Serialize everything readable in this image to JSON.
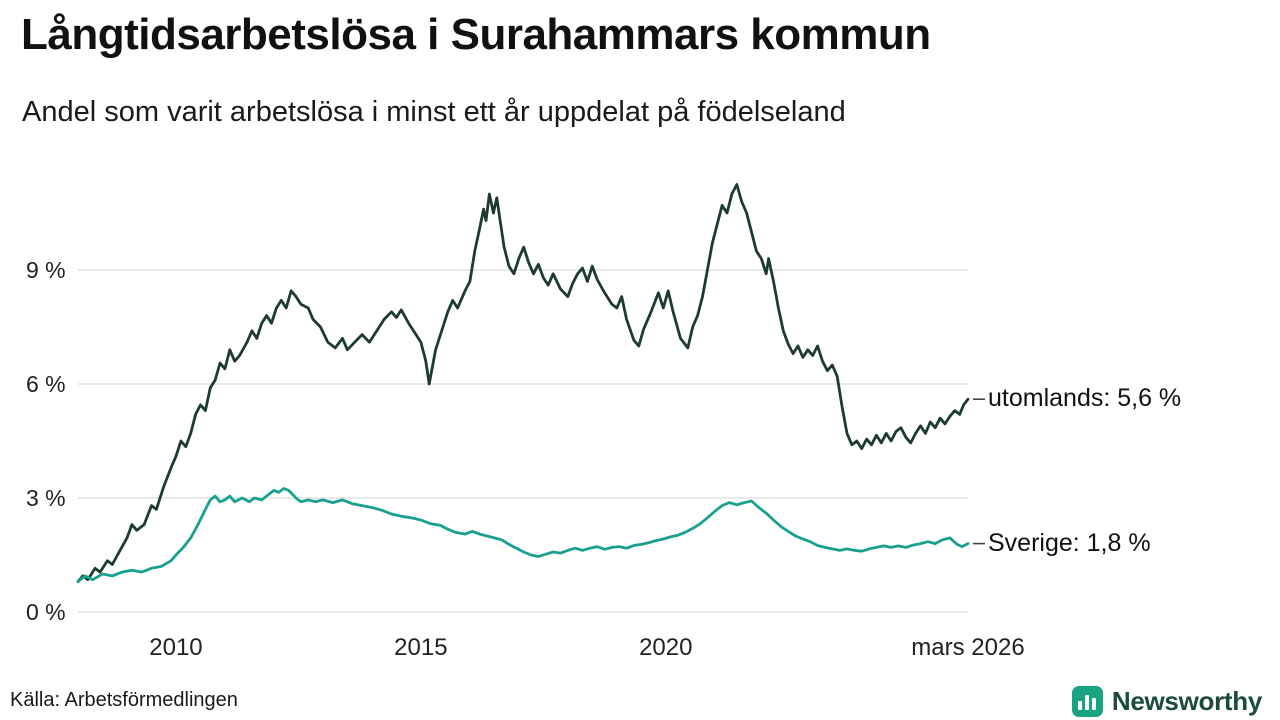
{
  "header": {
    "title": "Långtidsarbetslösa i Surahammars kommun",
    "subtitle": "Andel som varit arbetslösa i minst ett år uppdelat på födelseland"
  },
  "footer": {
    "source": "Källa: Arbetsförmedlingen"
  },
  "branding": {
    "name": "Newsworthy",
    "logo_icon": "bar-chart-icon",
    "accent_color": "#18a383",
    "text_color": "#1b4a3e"
  },
  "chart_data": {
    "type": "line",
    "title": "Långtidsarbetslösa i Surahammars kommun",
    "subtitle": "Andel som varit arbetslösa i minst ett år uppdelat på födelseland",
    "unit": "%",
    "grid": "horizontal",
    "legend_position": "right-end-labels",
    "x_axis": {
      "range": [
        2008.0,
        2026.17
      ],
      "ticks": [
        {
          "value": 2010,
          "label": "2010"
        },
        {
          "value": 2015,
          "label": "2015"
        },
        {
          "value": 2020,
          "label": "2020"
        },
        {
          "value": 2026.17,
          "label": "mars 2026"
        }
      ]
    },
    "y_axis": {
      "range": [
        0,
        11.6
      ],
      "ticks": [
        {
          "value": 0,
          "label": "0 %"
        },
        {
          "value": 3,
          "label": "3 %"
        },
        {
          "value": 6,
          "label": "6 %"
        },
        {
          "value": 9,
          "label": "9 %"
        }
      ]
    },
    "series": [
      {
        "name": "utomlands",
        "color": "#1e3b31",
        "end_value": 5.6,
        "end_label": "utomlands: 5,6 %",
        "points": [
          [
            2008.0,
            0.8
          ],
          [
            2008.1,
            0.95
          ],
          [
            2008.2,
            0.85
          ],
          [
            2008.35,
            1.15
          ],
          [
            2008.45,
            1.05
          ],
          [
            2008.6,
            1.35
          ],
          [
            2008.7,
            1.25
          ],
          [
            2008.85,
            1.6
          ],
          [
            2009.0,
            1.95
          ],
          [
            2009.1,
            2.3
          ],
          [
            2009.2,
            2.15
          ],
          [
            2009.35,
            2.3
          ],
          [
            2009.5,
            2.8
          ],
          [
            2009.6,
            2.7
          ],
          [
            2009.75,
            3.3
          ],
          [
            2009.9,
            3.8
          ],
          [
            2010.0,
            4.1
          ],
          [
            2010.1,
            4.5
          ],
          [
            2010.2,
            4.35
          ],
          [
            2010.3,
            4.7
          ],
          [
            2010.4,
            5.2
          ],
          [
            2010.5,
            5.45
          ],
          [
            2010.6,
            5.3
          ],
          [
            2010.7,
            5.9
          ],
          [
            2010.8,
            6.1
          ],
          [
            2010.9,
            6.55
          ],
          [
            2011.0,
            6.4
          ],
          [
            2011.1,
            6.9
          ],
          [
            2011.2,
            6.6
          ],
          [
            2011.3,
            6.75
          ],
          [
            2011.45,
            7.1
          ],
          [
            2011.55,
            7.4
          ],
          [
            2011.65,
            7.2
          ],
          [
            2011.75,
            7.6
          ],
          [
            2011.85,
            7.8
          ],
          [
            2011.95,
            7.6
          ],
          [
            2012.05,
            8.0
          ],
          [
            2012.15,
            8.2
          ],
          [
            2012.25,
            8.0
          ],
          [
            2012.35,
            8.45
          ],
          [
            2012.45,
            8.3
          ],
          [
            2012.55,
            8.1
          ],
          [
            2012.7,
            8.0
          ],
          [
            2012.8,
            7.7
          ],
          [
            2012.95,
            7.5
          ],
          [
            2013.1,
            7.1
          ],
          [
            2013.25,
            6.95
          ],
          [
            2013.4,
            7.2
          ],
          [
            2013.5,
            6.9
          ],
          [
            2013.65,
            7.1
          ],
          [
            2013.8,
            7.3
          ],
          [
            2013.95,
            7.1
          ],
          [
            2014.1,
            7.4
          ],
          [
            2014.25,
            7.7
          ],
          [
            2014.4,
            7.9
          ],
          [
            2014.5,
            7.75
          ],
          [
            2014.6,
            7.95
          ],
          [
            2014.75,
            7.6
          ],
          [
            2014.9,
            7.3
          ],
          [
            2015.0,
            7.1
          ],
          [
            2015.1,
            6.6
          ],
          [
            2015.17,
            6.0
          ],
          [
            2015.3,
            6.9
          ],
          [
            2015.45,
            7.5
          ],
          [
            2015.55,
            7.9
          ],
          [
            2015.65,
            8.2
          ],
          [
            2015.75,
            8.0
          ],
          [
            2015.9,
            8.45
          ],
          [
            2016.0,
            8.7
          ],
          [
            2016.1,
            9.5
          ],
          [
            2016.2,
            10.1
          ],
          [
            2016.28,
            10.6
          ],
          [
            2016.33,
            10.3
          ],
          [
            2016.4,
            11.0
          ],
          [
            2016.48,
            10.5
          ],
          [
            2016.55,
            10.9
          ],
          [
            2016.63,
            10.2
          ],
          [
            2016.7,
            9.6
          ],
          [
            2016.8,
            9.1
          ],
          [
            2016.9,
            8.9
          ],
          [
            2017.0,
            9.3
          ],
          [
            2017.1,
            9.6
          ],
          [
            2017.2,
            9.2
          ],
          [
            2017.3,
            8.9
          ],
          [
            2017.4,
            9.15
          ],
          [
            2017.5,
            8.8
          ],
          [
            2017.6,
            8.6
          ],
          [
            2017.7,
            8.9
          ],
          [
            2017.85,
            8.5
          ],
          [
            2018.0,
            8.3
          ],
          [
            2018.1,
            8.65
          ],
          [
            2018.2,
            8.9
          ],
          [
            2018.3,
            9.05
          ],
          [
            2018.4,
            8.7
          ],
          [
            2018.5,
            9.1
          ],
          [
            2018.6,
            8.75
          ],
          [
            2018.75,
            8.4
          ],
          [
            2018.9,
            8.1
          ],
          [
            2019.0,
            8.0
          ],
          [
            2019.1,
            8.3
          ],
          [
            2019.2,
            7.7
          ],
          [
            2019.35,
            7.15
          ],
          [
            2019.45,
            7.0
          ],
          [
            2019.55,
            7.45
          ],
          [
            2019.7,
            7.9
          ],
          [
            2019.85,
            8.4
          ],
          [
            2019.95,
            8.0
          ],
          [
            2020.05,
            8.45
          ],
          [
            2020.15,
            7.9
          ],
          [
            2020.3,
            7.2
          ],
          [
            2020.45,
            6.95
          ],
          [
            2020.55,
            7.5
          ],
          [
            2020.65,
            7.8
          ],
          [
            2020.75,
            8.3
          ],
          [
            2020.85,
            9.0
          ],
          [
            2020.95,
            9.7
          ],
          [
            2021.05,
            10.2
          ],
          [
            2021.15,
            10.7
          ],
          [
            2021.25,
            10.5
          ],
          [
            2021.35,
            11.0
          ],
          [
            2021.45,
            11.25
          ],
          [
            2021.55,
            10.8
          ],
          [
            2021.65,
            10.5
          ],
          [
            2021.75,
            10.0
          ],
          [
            2021.85,
            9.5
          ],
          [
            2021.95,
            9.3
          ],
          [
            2022.05,
            8.9
          ],
          [
            2022.1,
            9.3
          ],
          [
            2022.2,
            8.7
          ],
          [
            2022.3,
            8.0
          ],
          [
            2022.4,
            7.4
          ],
          [
            2022.5,
            7.05
          ],
          [
            2022.6,
            6.8
          ],
          [
            2022.7,
            7.0
          ],
          [
            2022.8,
            6.7
          ],
          [
            2022.9,
            6.9
          ],
          [
            2023.0,
            6.75
          ],
          [
            2023.1,
            7.0
          ],
          [
            2023.2,
            6.6
          ],
          [
            2023.3,
            6.35
          ],
          [
            2023.4,
            6.5
          ],
          [
            2023.5,
            6.2
          ],
          [
            2023.6,
            5.4
          ],
          [
            2023.7,
            4.7
          ],
          [
            2023.8,
            4.4
          ],
          [
            2023.9,
            4.5
          ],
          [
            2024.0,
            4.3
          ],
          [
            2024.1,
            4.55
          ],
          [
            2024.2,
            4.4
          ],
          [
            2024.3,
            4.65
          ],
          [
            2024.4,
            4.45
          ],
          [
            2024.5,
            4.7
          ],
          [
            2024.6,
            4.5
          ],
          [
            2024.7,
            4.75
          ],
          [
            2024.8,
            4.85
          ],
          [
            2024.9,
            4.6
          ],
          [
            2025.0,
            4.45
          ],
          [
            2025.1,
            4.7
          ],
          [
            2025.2,
            4.9
          ],
          [
            2025.3,
            4.7
          ],
          [
            2025.4,
            5.0
          ],
          [
            2025.5,
            4.85
          ],
          [
            2025.6,
            5.1
          ],
          [
            2025.7,
            4.95
          ],
          [
            2025.8,
            5.15
          ],
          [
            2025.9,
            5.3
          ],
          [
            2026.0,
            5.2
          ],
          [
            2026.08,
            5.45
          ],
          [
            2026.17,
            5.6
          ]
        ]
      },
      {
        "name": "Sverige",
        "color": "#19a08e",
        "end_value": 1.8,
        "end_label": "Sverige: 1,8 %",
        "points": [
          [
            2008.0,
            0.8
          ],
          [
            2008.15,
            0.95
          ],
          [
            2008.3,
            0.85
          ],
          [
            2008.5,
            1.0
          ],
          [
            2008.7,
            0.95
          ],
          [
            2008.9,
            1.05
          ],
          [
            2009.1,
            1.1
          ],
          [
            2009.3,
            1.05
          ],
          [
            2009.5,
            1.15
          ],
          [
            2009.7,
            1.2
          ],
          [
            2009.9,
            1.35
          ],
          [
            2010.0,
            1.5
          ],
          [
            2010.15,
            1.7
          ],
          [
            2010.3,
            1.95
          ],
          [
            2010.45,
            2.3
          ],
          [
            2010.6,
            2.7
          ],
          [
            2010.7,
            2.95
          ],
          [
            2010.8,
            3.05
          ],
          [
            2010.9,
            2.9
          ],
          [
            2011.0,
            2.95
          ],
          [
            2011.1,
            3.05
          ],
          [
            2011.2,
            2.9
          ],
          [
            2011.35,
            3.0
          ],
          [
            2011.5,
            2.9
          ],
          [
            2011.6,
            3.0
          ],
          [
            2011.75,
            2.95
          ],
          [
            2011.9,
            3.1
          ],
          [
            2012.0,
            3.2
          ],
          [
            2012.1,
            3.15
          ],
          [
            2012.2,
            3.25
          ],
          [
            2012.3,
            3.2
          ],
          [
            2012.45,
            3.0
          ],
          [
            2012.55,
            2.9
          ],
          [
            2012.7,
            2.95
          ],
          [
            2012.85,
            2.9
          ],
          [
            2013.0,
            2.95
          ],
          [
            2013.2,
            2.88
          ],
          [
            2013.4,
            2.95
          ],
          [
            2013.6,
            2.85
          ],
          [
            2013.8,
            2.8
          ],
          [
            2014.0,
            2.75
          ],
          [
            2014.2,
            2.68
          ],
          [
            2014.4,
            2.58
          ],
          [
            2014.6,
            2.52
          ],
          [
            2014.8,
            2.48
          ],
          [
            2015.0,
            2.42
          ],
          [
            2015.2,
            2.32
          ],
          [
            2015.4,
            2.28
          ],
          [
            2015.55,
            2.18
          ],
          [
            2015.7,
            2.1
          ],
          [
            2015.9,
            2.05
          ],
          [
            2016.05,
            2.12
          ],
          [
            2016.2,
            2.05
          ],
          [
            2016.35,
            2.0
          ],
          [
            2016.5,
            1.95
          ],
          [
            2016.65,
            1.9
          ],
          [
            2016.8,
            1.78
          ],
          [
            2016.95,
            1.68
          ],
          [
            2017.1,
            1.58
          ],
          [
            2017.25,
            1.5
          ],
          [
            2017.4,
            1.46
          ],
          [
            2017.55,
            1.52
          ],
          [
            2017.7,
            1.58
          ],
          [
            2017.85,
            1.55
          ],
          [
            2018.0,
            1.62
          ],
          [
            2018.15,
            1.68
          ],
          [
            2018.3,
            1.62
          ],
          [
            2018.45,
            1.68
          ],
          [
            2018.6,
            1.72
          ],
          [
            2018.75,
            1.65
          ],
          [
            2018.9,
            1.7
          ],
          [
            2019.05,
            1.72
          ],
          [
            2019.2,
            1.68
          ],
          [
            2019.35,
            1.75
          ],
          [
            2019.5,
            1.78
          ],
          [
            2019.65,
            1.82
          ],
          [
            2019.8,
            1.88
          ],
          [
            2019.95,
            1.92
          ],
          [
            2020.1,
            1.98
          ],
          [
            2020.25,
            2.02
          ],
          [
            2020.4,
            2.1
          ],
          [
            2020.55,
            2.2
          ],
          [
            2020.7,
            2.32
          ],
          [
            2020.85,
            2.48
          ],
          [
            2021.0,
            2.65
          ],
          [
            2021.15,
            2.8
          ],
          [
            2021.3,
            2.88
          ],
          [
            2021.45,
            2.82
          ],
          [
            2021.6,
            2.88
          ],
          [
            2021.75,
            2.92
          ],
          [
            2021.9,
            2.75
          ],
          [
            2022.05,
            2.6
          ],
          [
            2022.2,
            2.42
          ],
          [
            2022.35,
            2.25
          ],
          [
            2022.5,
            2.12
          ],
          [
            2022.65,
            2.0
          ],
          [
            2022.8,
            1.92
          ],
          [
            2022.95,
            1.85
          ],
          [
            2023.1,
            1.75
          ],
          [
            2023.25,
            1.7
          ],
          [
            2023.4,
            1.66
          ],
          [
            2023.55,
            1.62
          ],
          [
            2023.7,
            1.66
          ],
          [
            2023.85,
            1.62
          ],
          [
            2024.0,
            1.6
          ],
          [
            2024.15,
            1.66
          ],
          [
            2024.3,
            1.7
          ],
          [
            2024.45,
            1.74
          ],
          [
            2024.6,
            1.7
          ],
          [
            2024.75,
            1.74
          ],
          [
            2024.9,
            1.7
          ],
          [
            2025.05,
            1.76
          ],
          [
            2025.2,
            1.8
          ],
          [
            2025.35,
            1.85
          ],
          [
            2025.5,
            1.8
          ],
          [
            2025.65,
            1.9
          ],
          [
            2025.8,
            1.95
          ],
          [
            2025.95,
            1.78
          ],
          [
            2026.05,
            1.72
          ],
          [
            2026.17,
            1.8
          ]
        ]
      }
    ]
  }
}
